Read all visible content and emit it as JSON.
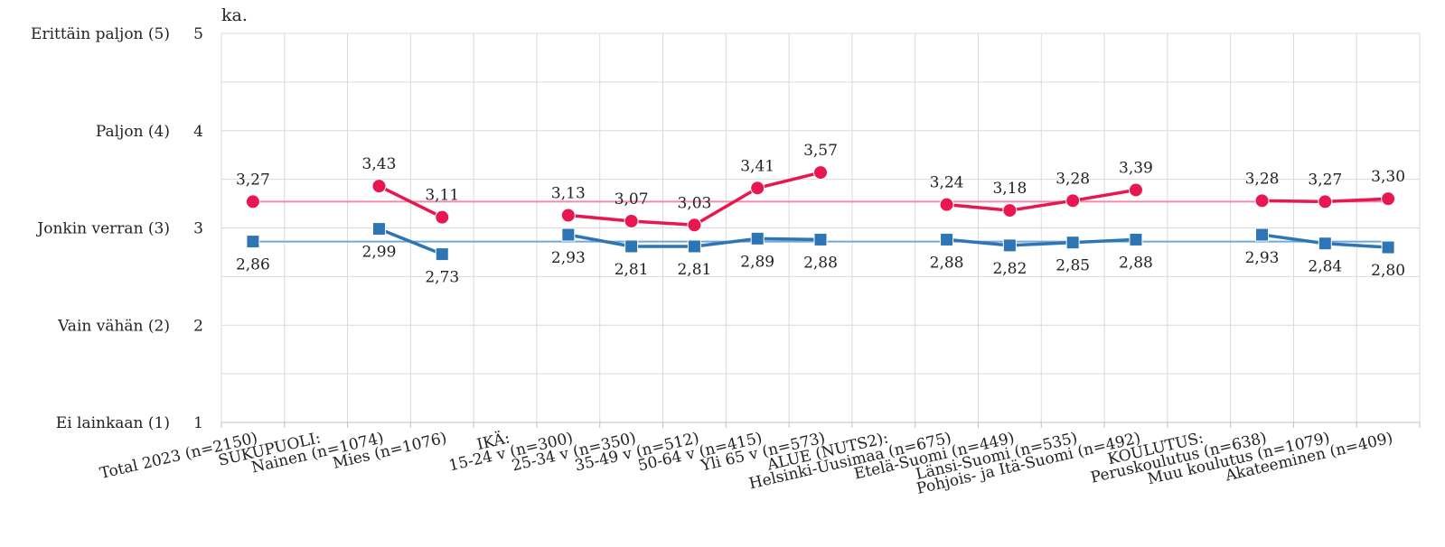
{
  "chart_data": {
    "type": "line",
    "unit_label": "ka.",
    "ylim": [
      1,
      5
    ],
    "yticks": [
      {
        "value": 5,
        "number": "5",
        "label": "Erittäin paljon (5)"
      },
      {
        "value": 4,
        "number": "4",
        "label": "Paljon (4)"
      },
      {
        "value": 3,
        "number": "3",
        "label": "Jonkin verran (3)"
      },
      {
        "value": 2,
        "number": "2",
        "label": "Vain vähän (2)"
      },
      {
        "value": 1,
        "number": "1",
        "label": "Ei lainkaan (1)"
      }
    ],
    "grid": true,
    "categories": [
      "Total 2023 (n=2150)",
      "SUKUPUOLI:",
      "Nainen (n=1074)",
      "Mies (n=1076)",
      "IKÄ:",
      "15-24 v (n=300)",
      "25-34 v (n=350)",
      "35-49 v (n=512)",
      "50-64 v (n=415)",
      "Yli 65 v (n=573)",
      "ALUE (NUTS2):",
      "Helsinki-Uusimaa (n=675)",
      "Etelä-Suomi (n=449)",
      "Länsi-Suomi (n=535)",
      "Pohjois- ja Itä-Suomi (n=492)",
      "KOULUTUS:",
      "Peruskoulutus (n=638)",
      "Muu koulutus (n=1079)",
      "Akateeminen  (n=409)"
    ],
    "series": [
      {
        "color": "#e8174f",
        "reference_color": "#f08ca6",
        "marker": "circle",
        "label_position": "above",
        "reference_value": 3.27,
        "values": [
          3.27,
          null,
          3.43,
          3.11,
          null,
          3.13,
          3.07,
          3.03,
          3.41,
          3.57,
          null,
          3.24,
          3.18,
          3.28,
          3.39,
          null,
          3.28,
          3.27,
          3.3
        ],
        "labels": [
          "3,27",
          null,
          "3,43",
          "3,11",
          null,
          "3,13",
          "3,07",
          "3,03",
          "3,41",
          "3,57",
          null,
          "3,24",
          "3,18",
          "3,28",
          "3,39",
          null,
          "3,28",
          "3,27",
          "3,30"
        ]
      },
      {
        "color": "#2e75b6",
        "reference_color": "#6fa8dc",
        "marker": "square",
        "label_position": "below",
        "reference_value": 2.86,
        "values": [
          2.86,
          null,
          2.99,
          2.73,
          null,
          2.93,
          2.81,
          2.81,
          2.89,
          2.88,
          null,
          2.88,
          2.82,
          2.85,
          2.88,
          null,
          2.93,
          2.84,
          2.8
        ],
        "labels": [
          "2,86",
          null,
          "2,99",
          "2,73",
          null,
          "2,93",
          "2,81",
          "2,81",
          "2,89",
          "2,88",
          null,
          "2,88",
          "2,82",
          "2,85",
          "2,88",
          null,
          "2,93",
          "2,84",
          "2,80"
        ]
      }
    ]
  }
}
